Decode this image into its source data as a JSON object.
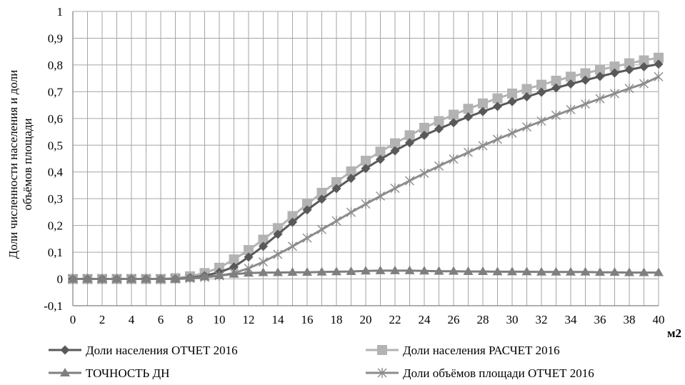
{
  "chart_data": {
    "type": "line",
    "title": "",
    "xlabel": "м2",
    "ylabel_lines": [
      "Доли численности населения и доли",
      "объёмов площади"
    ],
    "x": [
      0,
      1,
      2,
      3,
      4,
      5,
      6,
      7,
      8,
      9,
      10,
      11,
      12,
      13,
      14,
      15,
      16,
      17,
      18,
      19,
      20,
      21,
      22,
      23,
      24,
      25,
      26,
      27,
      28,
      29,
      30,
      31,
      32,
      33,
      34,
      35,
      36,
      37,
      38,
      39,
      40
    ],
    "xlim": [
      0,
      40
    ],
    "ylim": [
      -0.1,
      1
    ],
    "x_ticks": [
      "0",
      "2",
      "4",
      "6",
      "8",
      "10",
      "12",
      "14",
      "16",
      "18",
      "20",
      "22",
      "24",
      "26",
      "28",
      "30",
      "32",
      "34",
      "36",
      "38",
      "40"
    ],
    "y_ticks": [
      "-0,1",
      "0",
      "0,1",
      "0,2",
      "0,3",
      "0,4",
      "0,5",
      "0,6",
      "0,7",
      "0,8",
      "0,9",
      "1"
    ],
    "grid": true,
    "legend_position": "bottom",
    "series": [
      {
        "name": "Доли населения  ОТЧЕТ 2016",
        "color": "#595959",
        "marker": "diamond",
        "values": [
          0,
          0,
          0,
          0,
          0,
          0,
          0,
          0,
          0.005,
          0.012,
          0.025,
          0.045,
          0.082,
          0.122,
          0.167,
          0.212,
          0.258,
          0.298,
          0.338,
          0.376,
          0.413,
          0.447,
          0.479,
          0.509,
          0.537,
          0.561,
          0.584,
          0.606,
          0.626,
          0.645,
          0.663,
          0.681,
          0.698,
          0.714,
          0.729,
          0.743,
          0.757,
          0.77,
          0.782,
          0.793,
          0.803
        ]
      },
      {
        "name": "Доли населения  РАСЧЕТ 2016",
        "color": "#b3b3b3",
        "marker": "square",
        "values": [
          0,
          0,
          0,
          0,
          0,
          0,
          0,
          0.003,
          0.01,
          0.022,
          0.042,
          0.073,
          0.108,
          0.147,
          0.19,
          0.235,
          0.28,
          0.322,
          0.362,
          0.402,
          0.442,
          0.476,
          0.507,
          0.537,
          0.565,
          0.59,
          0.614,
          0.636,
          0.656,
          0.675,
          0.693,
          0.71,
          0.726,
          0.741,
          0.756,
          0.769,
          0.782,
          0.794,
          0.806,
          0.817,
          0.827
        ]
      },
      {
        "name": "ТОЧНОСТЬ ДН",
        "color": "#7f7f7f",
        "marker": "triangle",
        "values": [
          0,
          0,
          0,
          0,
          0,
          0,
          0,
          0,
          0.003,
          0.008,
          0.013,
          0.018,
          0.022,
          0.024,
          0.024,
          0.025,
          0.025,
          0.026,
          0.027,
          0.028,
          0.03,
          0.031,
          0.031,
          0.031,
          0.03,
          0.029,
          0.029,
          0.028,
          0.028,
          0.027,
          0.027,
          0.027,
          0.026,
          0.026,
          0.026,
          0.026,
          0.025,
          0.025,
          0.024,
          0.024,
          0.024
        ]
      },
      {
        "name": "Доли объёмов площади ОТЧЕТ 2016",
        "color": "#8c8c8c",
        "marker": "star",
        "values": [
          0,
          0,
          0,
          0,
          0,
          0,
          0,
          0,
          0.002,
          0.006,
          0.012,
          0.022,
          0.04,
          0.064,
          0.092,
          0.122,
          0.153,
          0.185,
          0.217,
          0.249,
          0.28,
          0.31,
          0.339,
          0.367,
          0.395,
          0.422,
          0.448,
          0.473,
          0.498,
          0.522,
          0.545,
          0.568,
          0.59,
          0.612,
          0.633,
          0.654,
          0.674,
          0.693,
          0.712,
          0.73,
          0.756
        ]
      }
    ]
  }
}
